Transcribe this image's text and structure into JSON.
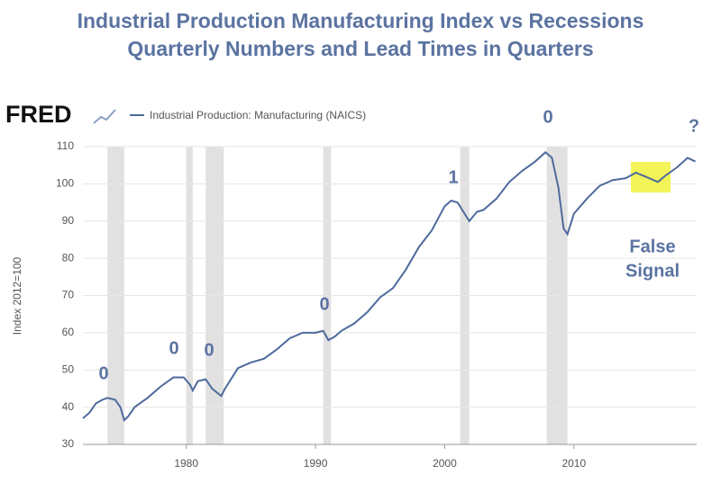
{
  "chart_data": {
    "type": "line",
    "title": "Industrial Production Manufacturing Index vs Recessions",
    "subtitle": "Quarterly Numbers and Lead Times in Quarters",
    "logo": "FRED",
    "y_label": "Index 2012=100",
    "x": [
      1972,
      1972.5,
      1973,
      1973.5,
      1973.9,
      1974.5,
      1974.9,
      1975.2,
      1975.5,
      1976,
      1977,
      1978,
      1979,
      1979.8,
      1980.3,
      1980.5,
      1980.9,
      1981.5,
      1982,
      1982.7,
      1983,
      1984,
      1985,
      1986,
      1987,
      1988,
      1989,
      1990,
      1990.6,
      1991,
      1991.5,
      1992,
      1993,
      1994,
      1995,
      1996,
      1997,
      1998,
      1999,
      2000,
      2000.5,
      2001,
      2001.9,
      2002.5,
      2003,
      2004,
      2005,
      2006,
      2007,
      2007.8,
      2008.3,
      2008.8,
      2009.2,
      2009.5,
      2010,
      2011,
      2012,
      2013,
      2014,
      2014.8,
      2015.5,
      2016.5,
      2017,
      2018,
      2018.8,
      2019.4
    ],
    "series": [
      {
        "name": "Industrial Production: Manufacturing (NAICS)",
        "color": "#4e6a9c",
        "values": [
          37,
          38.5,
          41,
          42,
          42.5,
          42,
          40,
          36.5,
          37.5,
          40,
          42.5,
          45.5,
          48,
          48,
          46,
          44.5,
          47,
          47.5,
          45,
          43,
          45,
          50.5,
          52,
          53,
          55.5,
          58.5,
          60,
          60,
          60.5,
          58,
          59,
          60.5,
          62.5,
          65.5,
          69.5,
          72,
          77,
          83,
          87.5,
          94,
          95.5,
          95,
          90,
          92.5,
          93,
          96,
          100.5,
          103.5,
          106,
          108.5,
          107,
          99,
          88,
          86.5,
          92,
          96,
          99.5,
          101,
          101.5,
          103,
          102,
          100.5,
          102,
          104.5,
          107,
          106
        ]
      }
    ],
    "recessions": [
      [
        1973.9,
        1975.2
      ],
      [
        1980.0,
        1980.5
      ],
      [
        1981.5,
        1982.9
      ],
      [
        1990.6,
        1991.2
      ],
      [
        2001.2,
        2001.9
      ],
      [
        2007.9,
        2009.5
      ]
    ],
    "recession_color": "#e1e1e1",
    "annotations": [
      "0",
      "0",
      "0",
      "0",
      "1",
      "0",
      "?",
      "False",
      "Signal"
    ],
    "xlim": [
      1972,
      2019.5
    ],
    "xticks": [
      1980,
      1990,
      2000,
      2010
    ],
    "ylim": [
      30,
      110
    ],
    "yticks": [
      30,
      40,
      50,
      60,
      70,
      80,
      90,
      100,
      110
    ],
    "grid": true
  }
}
